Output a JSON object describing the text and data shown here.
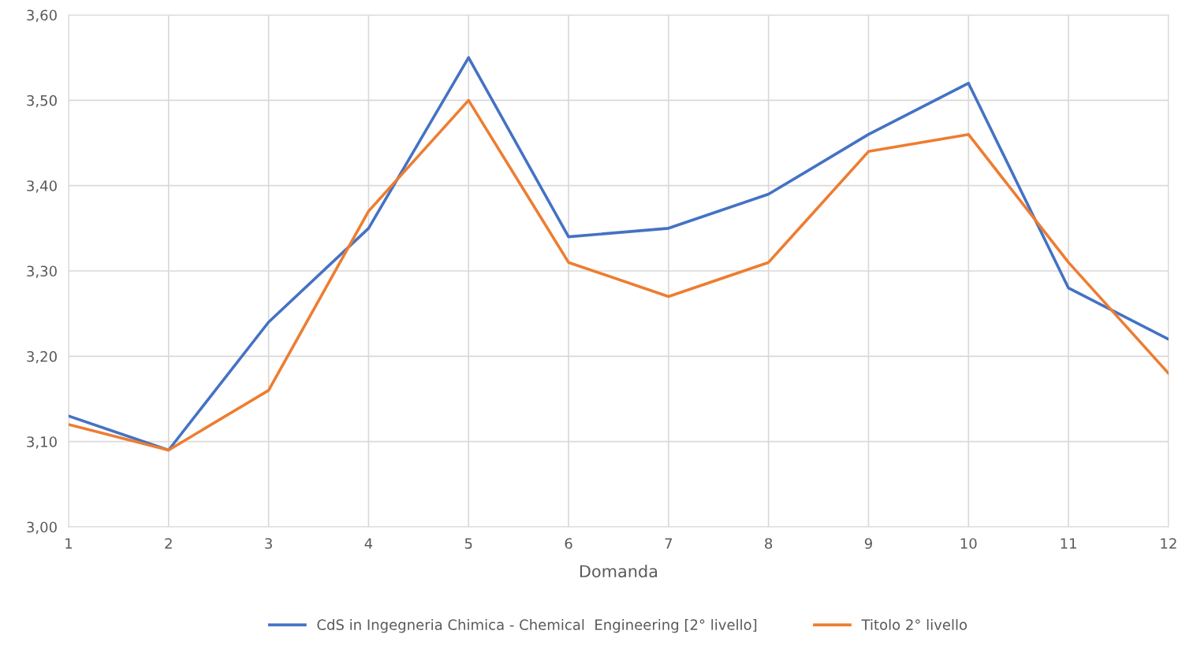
{
  "chart_data": {
    "type": "line",
    "xlabel": "Domanda",
    "x": [
      1,
      2,
      3,
      4,
      5,
      6,
      7,
      8,
      9,
      10,
      11,
      12
    ],
    "series": [
      {
        "name": "CdS in Ingegneria Chimica - Chemical  Engineering [2° livello]",
        "color": "#4472c4",
        "values": [
          3.13,
          3.09,
          3.24,
          3.35,
          3.55,
          3.34,
          3.35,
          3.39,
          3.46,
          3.52,
          3.28,
          3.22
        ]
      },
      {
        "name": "Titolo 2° livello",
        "color": "#ed7d31",
        "values": [
          3.12,
          3.09,
          3.16,
          3.37,
          3.5,
          3.31,
          3.27,
          3.31,
          3.44,
          3.46,
          3.31,
          3.18
        ]
      }
    ],
    "xlim": [
      1,
      12
    ],
    "xticks": [
      1,
      2,
      3,
      4,
      5,
      6,
      7,
      8,
      9,
      10,
      11,
      12
    ],
    "ylim": [
      3.0,
      3.6
    ],
    "yticks": [
      {
        "value": 3.0,
        "label": "3,00"
      },
      {
        "value": 3.1,
        "label": "3,10"
      },
      {
        "value": 3.2,
        "label": "3,20"
      },
      {
        "value": 3.3,
        "label": "3,30"
      },
      {
        "value": 3.4,
        "label": "3,40"
      },
      {
        "value": 3.5,
        "label": "3,50"
      },
      {
        "value": 3.6,
        "label": "3,60"
      }
    ],
    "grid": true,
    "legend": "bottom",
    "marker": "none",
    "line_style": "solid"
  }
}
